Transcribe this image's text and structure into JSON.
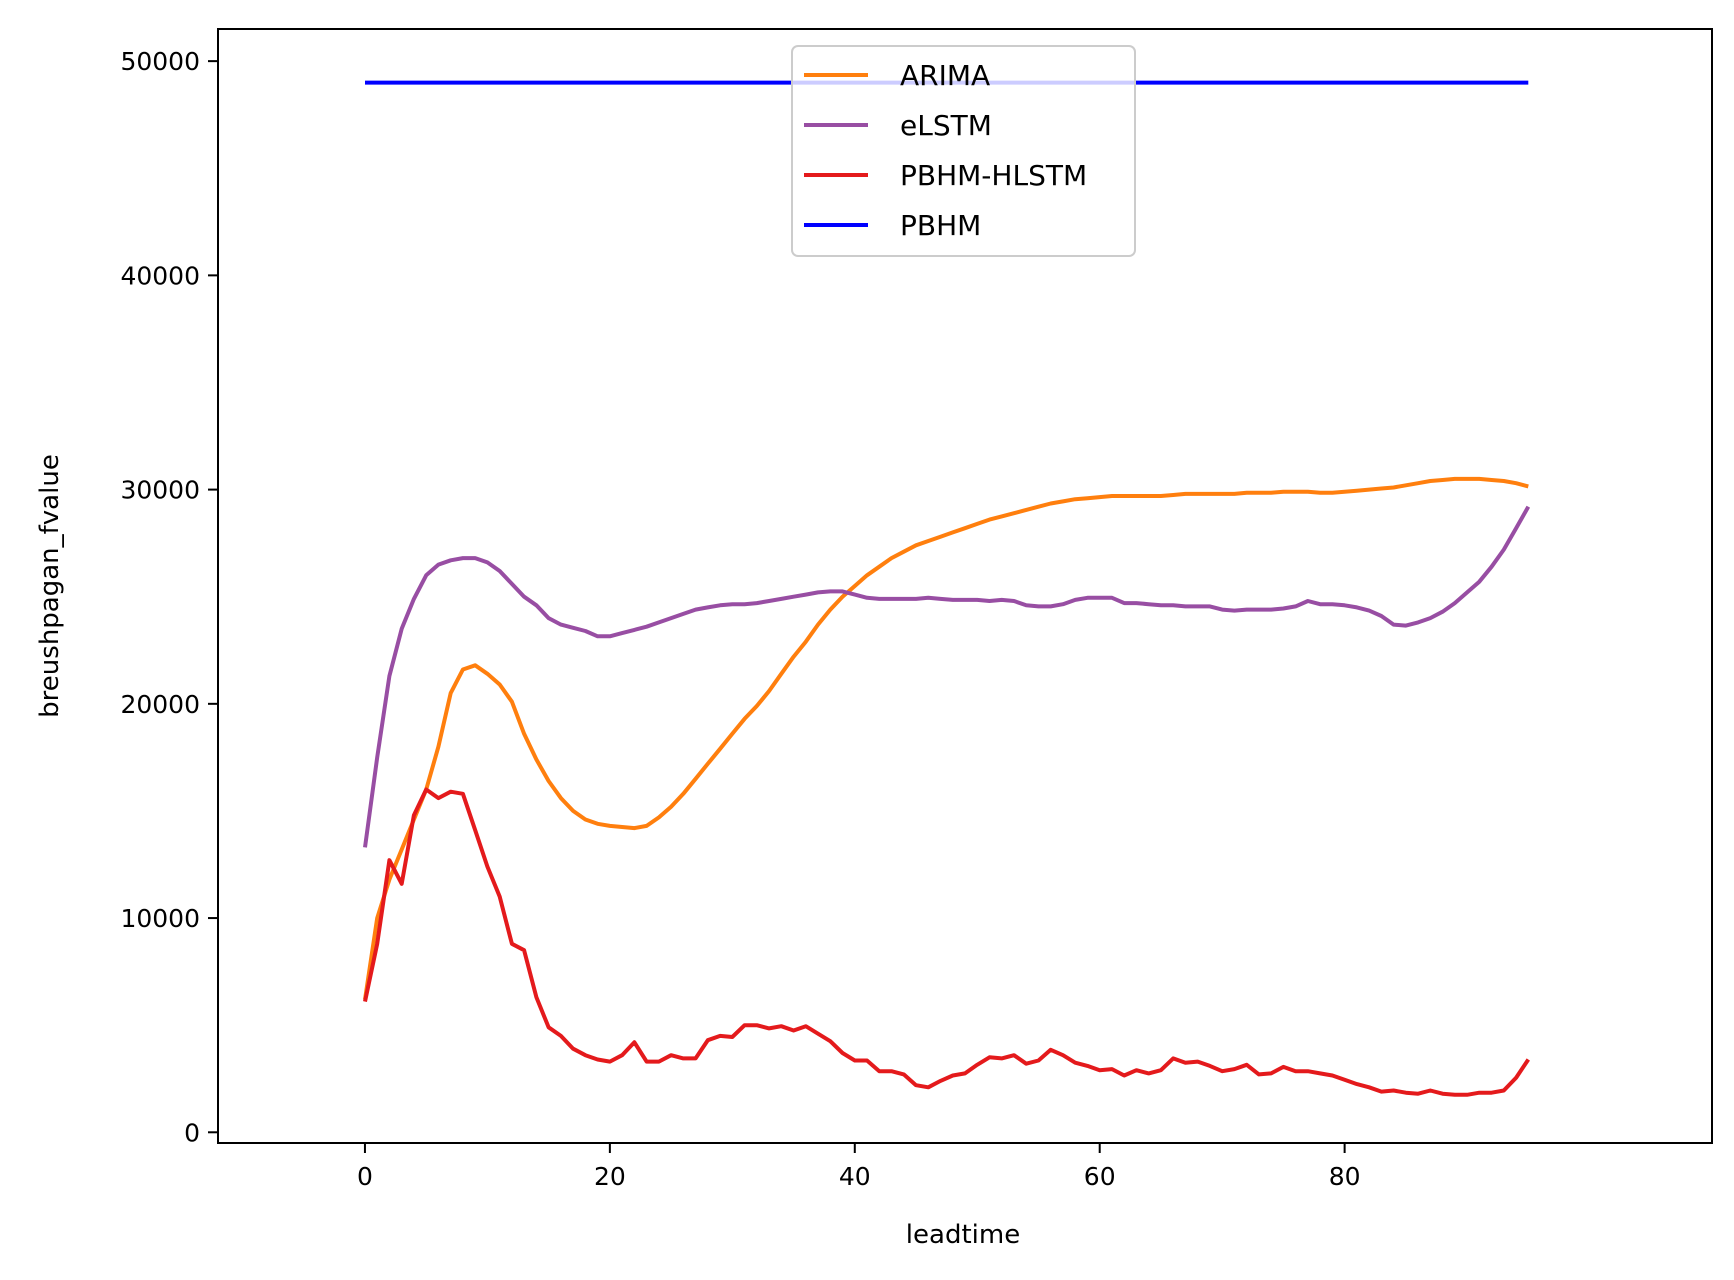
{
  "chart_data": {
    "type": "line",
    "title": "",
    "xlabel": "leadtime",
    "ylabel": "breushpagan_fvalue",
    "xlim": [
      -12,
      110
    ],
    "ylim": [
      -500,
      51500
    ],
    "xticks": [
      0,
      20,
      40,
      60,
      80
    ],
    "yticks": [
      0,
      10000,
      20000,
      30000,
      40000,
      50000
    ],
    "grid": false,
    "legend_position": "upper center",
    "x": [
      0,
      1,
      2,
      3,
      4,
      5,
      6,
      7,
      8,
      9,
      10,
      11,
      12,
      13,
      14,
      15,
      16,
      17,
      18,
      19,
      20,
      21,
      22,
      23,
      24,
      25,
      26,
      27,
      28,
      29,
      30,
      31,
      32,
      33,
      34,
      35,
      36,
      37,
      38,
      39,
      40,
      41,
      42,
      43,
      44,
      45,
      46,
      47,
      48,
      49,
      50,
      51,
      52,
      53,
      54,
      55,
      56,
      57,
      58,
      59,
      60,
      61,
      62,
      63,
      64,
      65,
      66,
      67,
      68,
      69,
      70,
      71,
      72,
      73,
      74,
      75,
      76,
      77,
      78,
      79,
      80,
      81,
      82,
      83,
      84,
      85,
      86,
      87,
      88,
      89,
      90,
      91,
      92,
      93,
      94,
      95
    ],
    "series": [
      {
        "name": "ARIMA",
        "color": "#ff7f0e",
        "values": [
          6200,
          10000,
          11800,
          13200,
          14600,
          16000,
          18000,
          20500,
          21600,
          21800,
          21400,
          20900,
          20100,
          18600,
          17400,
          16400,
          15600,
          15000,
          14600,
          14400,
          14300,
          14250,
          14200,
          14300,
          14700,
          15200,
          15800,
          16500,
          17200,
          17900,
          18600,
          19300,
          19900,
          20600,
          21400,
          22200,
          22900,
          23700,
          24400,
          25000,
          25500,
          26000,
          26400,
          26800,
          27100,
          27400,
          27600,
          27800,
          28000,
          28200,
          28400,
          28600,
          28750,
          28900,
          29050,
          29200,
          29350,
          29450,
          29550,
          29600,
          29650,
          29700,
          29700,
          29700,
          29700,
          29700,
          29750,
          29800,
          29800,
          29800,
          29800,
          29800,
          29850,
          29850,
          29850,
          29900,
          29900,
          29900,
          29850,
          29850,
          29900,
          29950,
          30000,
          30050,
          30100,
          30200,
          30300,
          30400,
          30450,
          30500,
          30500,
          30500,
          30450,
          30400,
          30300,
          30150
        ]
      },
      {
        "name": "eLSTM",
        "color": "#984ea3",
        "values": [
          13300,
          17500,
          21300,
          23500,
          24900,
          26000,
          26500,
          26700,
          26800,
          26800,
          26600,
          26200,
          25600,
          25000,
          24600,
          24000,
          23700,
          23550,
          23400,
          23150,
          23150,
          23300,
          23450,
          23600,
          23800,
          24000,
          24200,
          24400,
          24500,
          24600,
          24650,
          24650,
          24700,
          24800,
          24900,
          25000,
          25100,
          25200,
          25250,
          25250,
          25100,
          24950,
          24900,
          24900,
          24900,
          24900,
          24950,
          24900,
          24850,
          24850,
          24850,
          24800,
          24850,
          24800,
          24600,
          24550,
          24550,
          24650,
          24850,
          24950,
          24950,
          24950,
          24700,
          24700,
          24650,
          24600,
          24600,
          24550,
          24550,
          24550,
          24400,
          24350,
          24400,
          24400,
          24400,
          24450,
          24550,
          24800,
          24650,
          24650,
          24600,
          24500,
          24350,
          24100,
          23700,
          23650,
          23800,
          24000,
          24300,
          24700,
          25200,
          25700,
          26400,
          27200,
          28200,
          29200
        ]
      },
      {
        "name": "PBHM-HLSTM",
        "color": "#e41a1c",
        "values": [
          6100,
          8800,
          12700,
          11600,
          14800,
          16000,
          15600,
          15900,
          15800,
          14100,
          12400,
          11000,
          8800,
          8500,
          6300,
          4900,
          4500,
          3900,
          3600,
          3400,
          3300,
          3600,
          4200,
          3300,
          3300,
          3600,
          3450,
          3450,
          4300,
          4500,
          4450,
          5000,
          5000,
          4850,
          4950,
          4750,
          4950,
          4600,
          4250,
          3700,
          3350,
          3350,
          2850,
          2850,
          2700,
          2200,
          2100,
          2400,
          2650,
          2750,
          3150,
          3500,
          3450,
          3600,
          3200,
          3350,
          3850,
          3600,
          3250,
          3100,
          2900,
          2950,
          2650,
          2900,
          2750,
          2900,
          3450,
          3250,
          3300,
          3100,
          2850,
          2950,
          3150,
          2700,
          2750,
          3050,
          2850,
          2850,
          2750,
          2650,
          2450,
          2250,
          2100,
          1900,
          1950,
          1850,
          1800,
          1950,
          1800,
          1750,
          1750,
          1850,
          1850,
          1950,
          2550,
          3400
        ]
      },
      {
        "name": "PBHM",
        "color": "#0000ff",
        "values": [
          49000,
          49000,
          49000,
          49000,
          49000,
          49000,
          49000,
          49000,
          49000,
          49000,
          49000,
          49000,
          49000,
          49000,
          49000,
          49000,
          49000,
          49000,
          49000,
          49000,
          49000,
          49000,
          49000,
          49000,
          49000,
          49000,
          49000,
          49000,
          49000,
          49000,
          49000,
          49000,
          49000,
          49000,
          49000,
          49000,
          49000,
          49000,
          49000,
          49000,
          49000,
          49000,
          49000,
          49000,
          49000,
          49000,
          49000,
          49000,
          49000,
          49000,
          49000,
          49000,
          49000,
          49000,
          49000,
          49000,
          49000,
          49000,
          49000,
          49000,
          49000,
          49000,
          49000,
          49000,
          49000,
          49000,
          49000,
          49000,
          49000,
          49000,
          49000,
          49000,
          49000,
          49000,
          49000,
          49000,
          49000,
          49000,
          49000,
          49000,
          49000,
          49000,
          49000,
          49000,
          49000,
          49000,
          49000,
          49000,
          49000,
          49000,
          49000,
          49000,
          49000,
          49000,
          49000,
          49000
        ]
      }
    ]
  }
}
